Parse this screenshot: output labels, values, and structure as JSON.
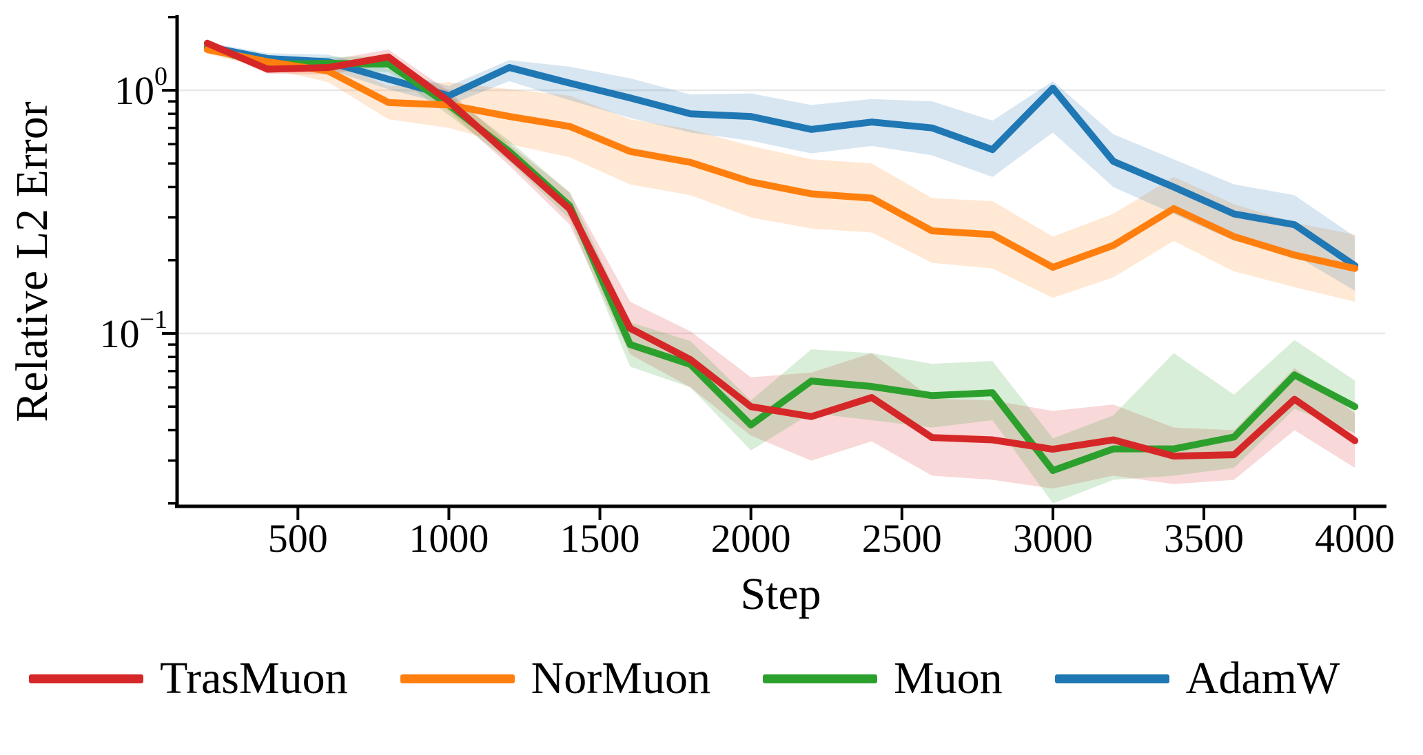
{
  "accent_colors": {
    "trasmuon_red": "#d62728",
    "normuon_orange": "#ff7f0e",
    "muon_green": "#2ca02c",
    "adamw_blue": "#1f77b4",
    "gridline_gray": "#e8e8e8",
    "axis_black": "#000000"
  },
  "chart_data": {
    "type": "line",
    "yscale": "log",
    "title": "",
    "xlabel": "Step",
    "ylabel": "Relative L2 Error",
    "xlim": [
      100,
      4100
    ],
    "ylim": [
      0.0195,
      2.0
    ],
    "grid": "horizontal-major-only",
    "legend_position": "bottom",
    "x_ticks": [
      500,
      1000,
      1500,
      2000,
      2500,
      3000,
      3500,
      4000
    ],
    "x_tick_labels": [
      "500",
      "1000",
      "1500",
      "2000",
      "2500",
      "3000",
      "3500",
      "4000"
    ],
    "y_major_ticks": [
      {
        "value": 1.0,
        "base": "10",
        "exponent": "0"
      },
      {
        "value": 0.1,
        "base": "10",
        "exponent": "−1"
      }
    ],
    "y_minor_ticks": [
      2.0,
      0.9,
      0.8,
      0.7,
      0.6,
      0.5,
      0.4,
      0.3,
      0.2,
      0.09,
      0.08,
      0.07,
      0.06,
      0.05,
      0.04,
      0.03,
      0.02
    ],
    "x": [
      200,
      400,
      600,
      800,
      1000,
      1200,
      1400,
      1600,
      1800,
      2000,
      2200,
      2400,
      2600,
      2800,
      3000,
      3200,
      3400,
      3600,
      3800,
      4000
    ],
    "series": [
      {
        "name": "TrasMuon",
        "color": "#d62728",
        "values": [
          1.56,
          1.22,
          1.24,
          1.37,
          0.9,
          0.54,
          0.325,
          0.105,
          0.078,
          0.05,
          0.0455,
          0.0545,
          0.0373,
          0.0365,
          0.0334,
          0.0365,
          0.0313,
          0.0317,
          0.0536,
          0.0362
        ],
        "band_lo": [
          1.5,
          1.17,
          1.16,
          1.27,
          0.82,
          0.49,
          0.28,
          0.082,
          0.06,
          0.038,
          0.03,
          0.036,
          0.026,
          0.025,
          0.023,
          0.026,
          0.024,
          0.025,
          0.04,
          0.028
        ],
        "band_hi": [
          1.62,
          1.28,
          1.33,
          1.47,
          0.99,
          0.6,
          0.38,
          0.135,
          0.102,
          0.066,
          0.069,
          0.083,
          0.054,
          0.053,
          0.048,
          0.051,
          0.041,
          0.04,
          0.072,
          0.047
        ]
      },
      {
        "name": "NorMuon",
        "color": "#ff7f0e",
        "values": [
          1.47,
          1.31,
          1.2,
          0.89,
          0.87,
          0.78,
          0.71,
          0.56,
          0.505,
          0.42,
          0.375,
          0.36,
          0.264,
          0.255,
          0.187,
          0.23,
          0.326,
          0.25,
          0.21,
          0.185
        ],
        "band_lo": [
          1.41,
          1.23,
          1.08,
          0.76,
          0.7,
          0.6,
          0.53,
          0.41,
          0.37,
          0.3,
          0.27,
          0.26,
          0.195,
          0.185,
          0.14,
          0.17,
          0.24,
          0.18,
          0.155,
          0.135
        ],
        "band_hi": [
          1.53,
          1.39,
          1.33,
          1.04,
          1.08,
          1.01,
          0.95,
          0.76,
          0.69,
          0.59,
          0.52,
          0.5,
          0.36,
          0.35,
          0.25,
          0.31,
          0.44,
          0.34,
          0.285,
          0.255
        ]
      },
      {
        "name": "Muon",
        "color": "#2ca02c",
        "values": [
          1.49,
          1.28,
          1.29,
          1.28,
          0.87,
          0.56,
          0.335,
          0.09,
          0.0745,
          0.042,
          0.0637,
          0.0605,
          0.0555,
          0.057,
          0.0273,
          0.0335,
          0.0335,
          0.0375,
          0.0675,
          0.05
        ],
        "band_lo": [
          1.44,
          1.22,
          1.21,
          1.19,
          0.79,
          0.51,
          0.295,
          0.073,
          0.06,
          0.033,
          0.047,
          0.044,
          0.041,
          0.044,
          0.02,
          0.025,
          0.026,
          0.028,
          0.049,
          0.039
        ],
        "band_hi": [
          1.54,
          1.34,
          1.37,
          1.38,
          0.96,
          0.62,
          0.38,
          0.111,
          0.093,
          0.053,
          0.086,
          0.083,
          0.075,
          0.077,
          0.037,
          0.046,
          0.083,
          0.056,
          0.094,
          0.064
        ]
      },
      {
        "name": "AdamW",
        "color": "#1f77b4",
        "values": [
          1.51,
          1.35,
          1.31,
          1.11,
          0.95,
          1.24,
          1.07,
          0.93,
          0.8,
          0.78,
          0.69,
          0.74,
          0.7,
          0.57,
          1.02,
          0.51,
          0.4,
          0.31,
          0.28,
          0.19
        ],
        "band_lo": [
          1.45,
          1.28,
          1.22,
          1.01,
          0.87,
          1.09,
          0.91,
          0.77,
          0.67,
          0.62,
          0.55,
          0.59,
          0.54,
          0.44,
          0.67,
          0.4,
          0.31,
          0.24,
          0.21,
          0.15
        ],
        "band_hi": [
          1.57,
          1.42,
          1.4,
          1.22,
          1.04,
          1.33,
          1.25,
          1.12,
          0.96,
          0.97,
          0.87,
          0.92,
          0.9,
          0.75,
          1.09,
          0.66,
          0.52,
          0.41,
          0.37,
          0.25
        ]
      }
    ]
  },
  "legend": {
    "items": [
      {
        "label": "TrasMuon",
        "color": "#d62728"
      },
      {
        "label": "NorMuon",
        "color": "#ff7f0e"
      },
      {
        "label": "Muon",
        "color": "#2ca02c"
      },
      {
        "label": "AdamW",
        "color": "#1f77b4"
      }
    ]
  }
}
